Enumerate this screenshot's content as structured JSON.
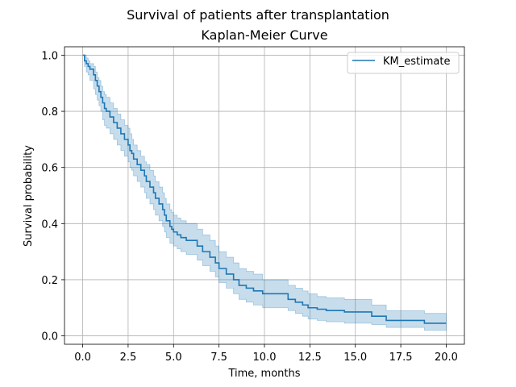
{
  "chart_data": {
    "type": "line",
    "suptitle": "Survival of patients after transplantation",
    "title": "Kaplan-Meier Curve",
    "xlabel": "Time, months",
    "ylabel": "Survival probability",
    "xlim": [
      -1.0,
      21.0
    ],
    "ylim": [
      -0.03,
      1.03
    ],
    "xticks": [
      0.0,
      2.5,
      5.0,
      7.5,
      10.0,
      12.5,
      15.0,
      17.5,
      20.0
    ],
    "xtick_labels": [
      "0.0",
      "2.5",
      "5.0",
      "7.5",
      "10.0",
      "12.5",
      "15.0",
      "17.5",
      "20.0"
    ],
    "yticks": [
      0.0,
      0.2,
      0.4,
      0.6,
      0.8,
      1.0
    ],
    "ytick_labels": [
      "0.0",
      "0.2",
      "0.4",
      "0.6",
      "0.8",
      "1.0"
    ],
    "grid": true,
    "legend_position": "top-right",
    "colors": {
      "line": "#1f77b4",
      "band": "#1f77b4"
    },
    "series": [
      {
        "name": "KM_estimate",
        "step": "post",
        "x": [
          0.0,
          0.1,
          0.2,
          0.3,
          0.4,
          0.6,
          0.7,
          0.8,
          0.9,
          1.0,
          1.1,
          1.2,
          1.3,
          1.5,
          1.7,
          1.9,
          2.1,
          2.3,
          2.5,
          2.6,
          2.7,
          2.8,
          3.0,
          3.2,
          3.4,
          3.5,
          3.7,
          3.9,
          4.0,
          4.2,
          4.4,
          4.5,
          4.6,
          4.8,
          4.9,
          5.0,
          5.2,
          5.4,
          5.7,
          6.3,
          6.6,
          7.0,
          7.3,
          7.5,
          7.9,
          8.3,
          8.6,
          9.0,
          9.4,
          9.9,
          11.3,
          11.7,
          12.1,
          12.4,
          12.9,
          13.4,
          14.4,
          15.9,
          16.7,
          18.8,
          20.0
        ],
        "y": [
          1.0,
          0.98,
          0.97,
          0.96,
          0.95,
          0.93,
          0.91,
          0.89,
          0.87,
          0.85,
          0.83,
          0.81,
          0.8,
          0.78,
          0.76,
          0.74,
          0.72,
          0.7,
          0.68,
          0.66,
          0.65,
          0.63,
          0.61,
          0.59,
          0.57,
          0.55,
          0.53,
          0.51,
          0.49,
          0.47,
          0.45,
          0.43,
          0.41,
          0.39,
          0.38,
          0.37,
          0.36,
          0.35,
          0.34,
          0.32,
          0.3,
          0.28,
          0.26,
          0.24,
          0.22,
          0.2,
          0.18,
          0.17,
          0.16,
          0.15,
          0.13,
          0.12,
          0.11,
          0.1,
          0.095,
          0.09,
          0.085,
          0.07,
          0.055,
          0.045,
          0.045
        ],
        "ci_lower": [
          1.0,
          0.96,
          0.94,
          0.93,
          0.91,
          0.88,
          0.86,
          0.84,
          0.82,
          0.8,
          0.77,
          0.75,
          0.74,
          0.72,
          0.7,
          0.68,
          0.66,
          0.64,
          0.62,
          0.6,
          0.59,
          0.57,
          0.55,
          0.53,
          0.51,
          0.49,
          0.47,
          0.45,
          0.43,
          0.41,
          0.39,
          0.37,
          0.35,
          0.33,
          0.33,
          0.32,
          0.31,
          0.3,
          0.29,
          0.27,
          0.25,
          0.23,
          0.21,
          0.19,
          0.17,
          0.15,
          0.13,
          0.12,
          0.11,
          0.1,
          0.09,
          0.08,
          0.07,
          0.06,
          0.055,
          0.05,
          0.045,
          0.04,
          0.03,
          0.02,
          0.02
        ],
        "ci_upper": [
          1.0,
          1.0,
          0.99,
          0.98,
          0.97,
          0.96,
          0.94,
          0.92,
          0.91,
          0.89,
          0.87,
          0.86,
          0.85,
          0.83,
          0.81,
          0.79,
          0.77,
          0.75,
          0.74,
          0.72,
          0.7,
          0.68,
          0.66,
          0.64,
          0.62,
          0.61,
          0.59,
          0.57,
          0.55,
          0.53,
          0.51,
          0.49,
          0.47,
          0.45,
          0.44,
          0.43,
          0.42,
          0.41,
          0.4,
          0.38,
          0.36,
          0.34,
          0.32,
          0.3,
          0.28,
          0.26,
          0.24,
          0.23,
          0.22,
          0.2,
          0.18,
          0.17,
          0.16,
          0.15,
          0.14,
          0.135,
          0.13,
          0.11,
          0.09,
          0.08,
          0.08
        ]
      }
    ]
  }
}
